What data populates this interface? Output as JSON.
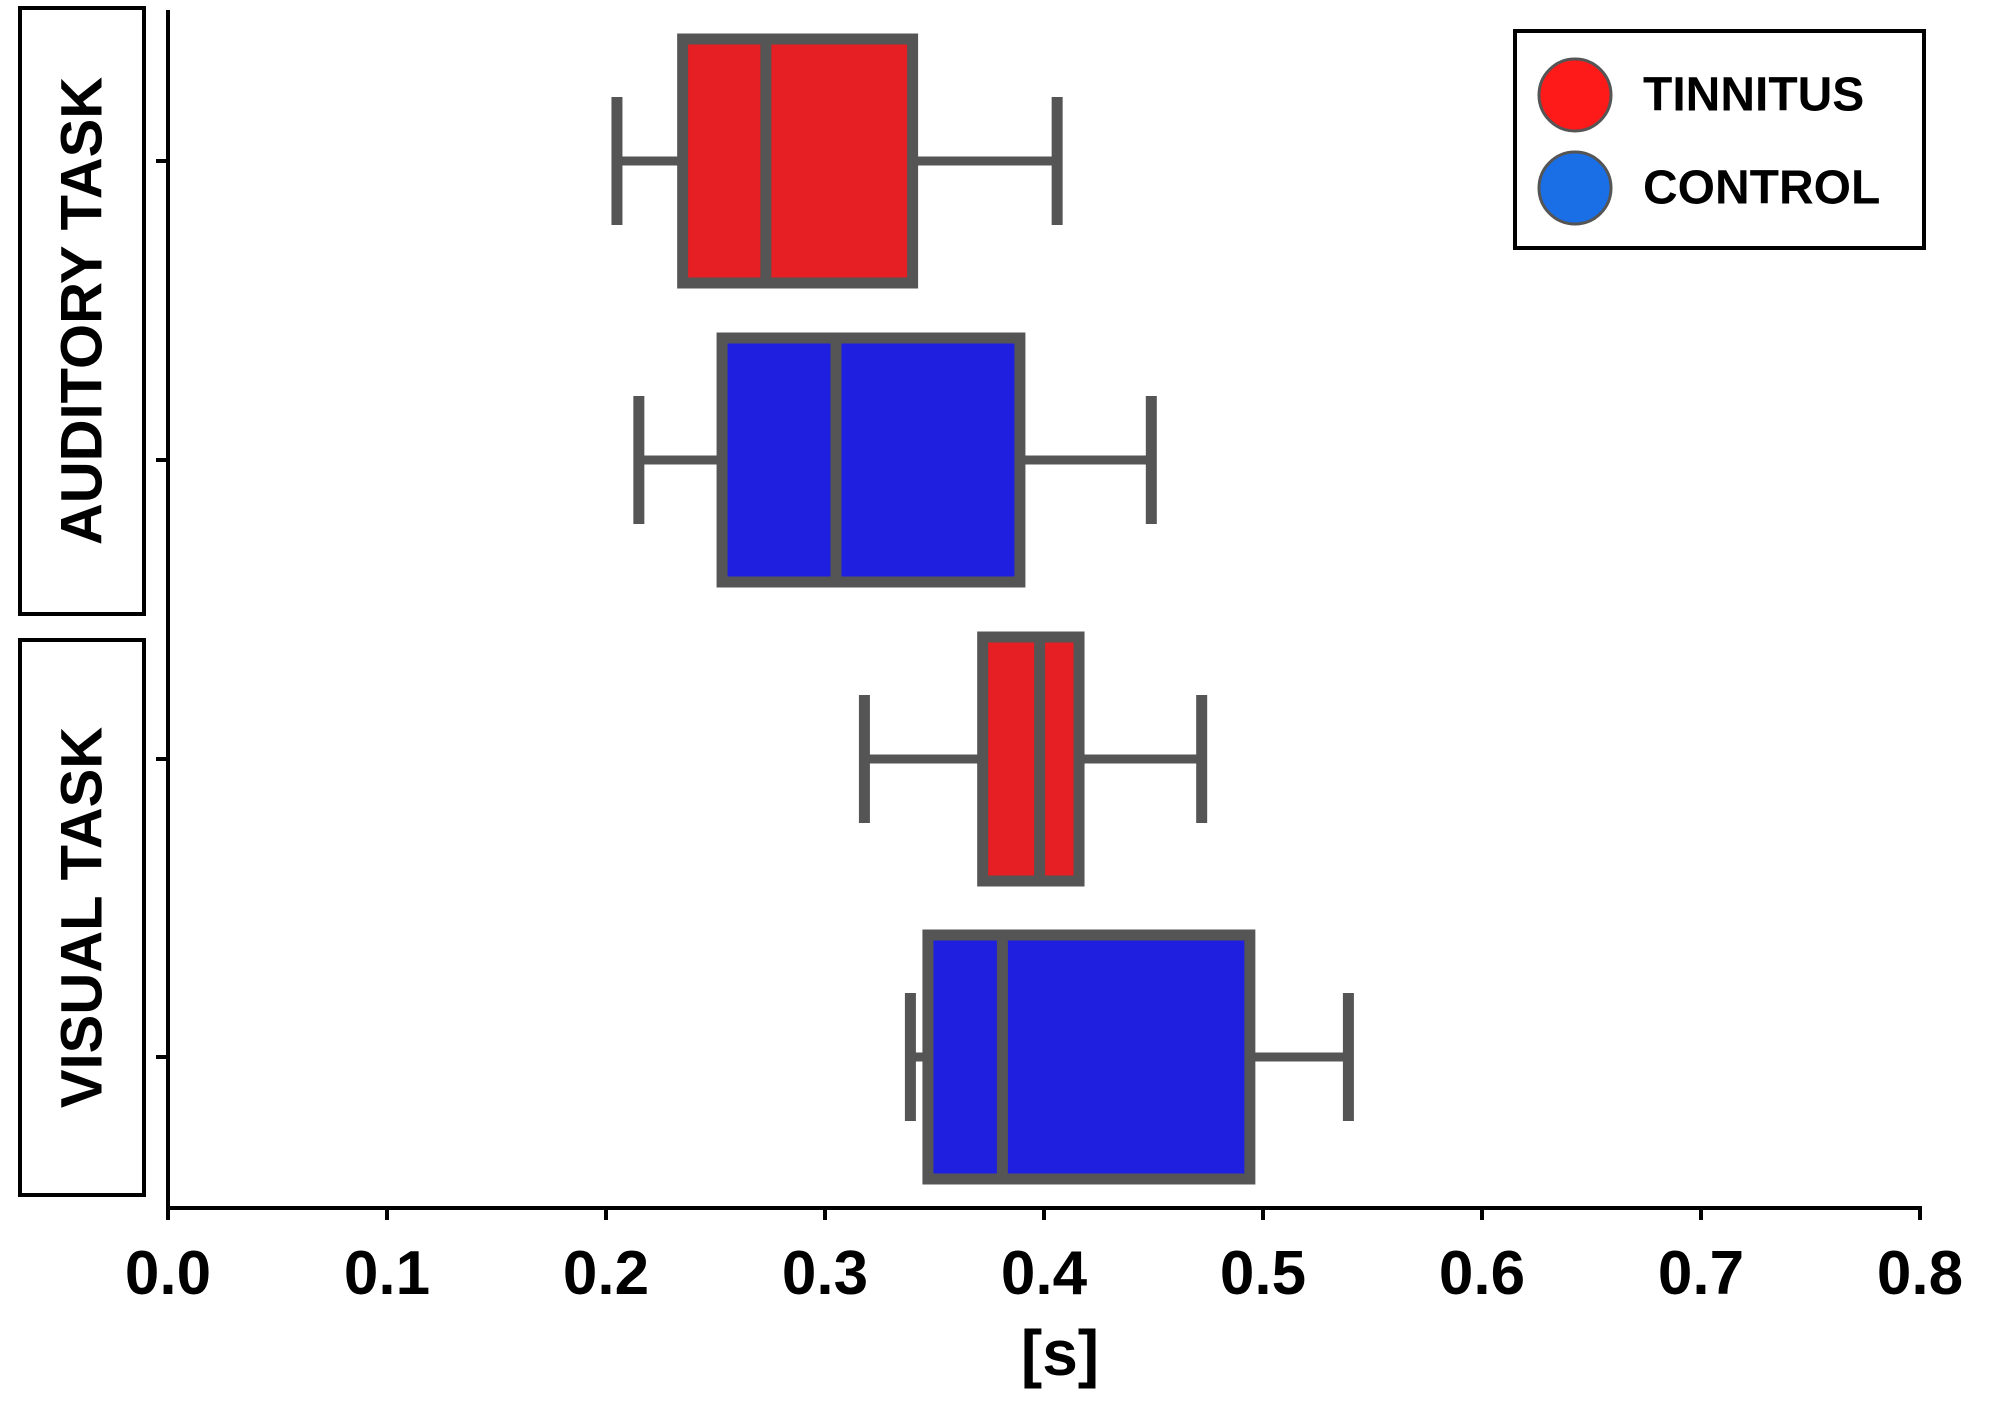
{
  "chart_data": {
    "type": "boxplot",
    "orientation": "horizontal",
    "xlabel": "[s]",
    "xlim": [
      0.0,
      0.8
    ],
    "xticks": [
      "0.0",
      "0.1",
      "0.2",
      "0.3",
      "0.4",
      "0.5",
      "0.6",
      "0.7",
      "0.8"
    ],
    "groups": [
      {
        "label": "AUDITORY TASK",
        "rows": [
          0,
          1
        ]
      },
      {
        "label": "VISUAL TASK",
        "rows": [
          2,
          3
        ]
      }
    ],
    "legend": {
      "placement": "top-right",
      "entries": [
        {
          "name": "TINNITUS",
          "color": "#ff1a1a"
        },
        {
          "name": "CONTROL",
          "color": "#1a6ee6"
        }
      ]
    },
    "boxes": [
      {
        "group": "AUDITORY TASK",
        "series": "TINNITUS",
        "color": "#e51f23",
        "whisker_low": 0.205,
        "q1": 0.235,
        "median": 0.273,
        "q3": 0.34,
        "whisker_high": 0.406
      },
      {
        "group": "AUDITORY TASK",
        "series": "CONTROL",
        "color": "#1f1fe0",
        "whisker_low": 0.215,
        "q1": 0.253,
        "median": 0.305,
        "q3": 0.389,
        "whisker_high": 0.449
      },
      {
        "group": "VISUAL TASK",
        "series": "TINNITUS",
        "color": "#e51f23",
        "whisker_low": 0.318,
        "q1": 0.372,
        "median": 0.398,
        "q3": 0.416,
        "whisker_high": 0.472
      },
      {
        "group": "VISUAL TASK",
        "series": "CONTROL",
        "color": "#1f1fe0",
        "whisker_low": 0.339,
        "q1": 0.347,
        "median": 0.381,
        "q3": 0.494,
        "whisker_high": 0.539
      }
    ],
    "grid": false,
    "outline_color": "#555555"
  }
}
